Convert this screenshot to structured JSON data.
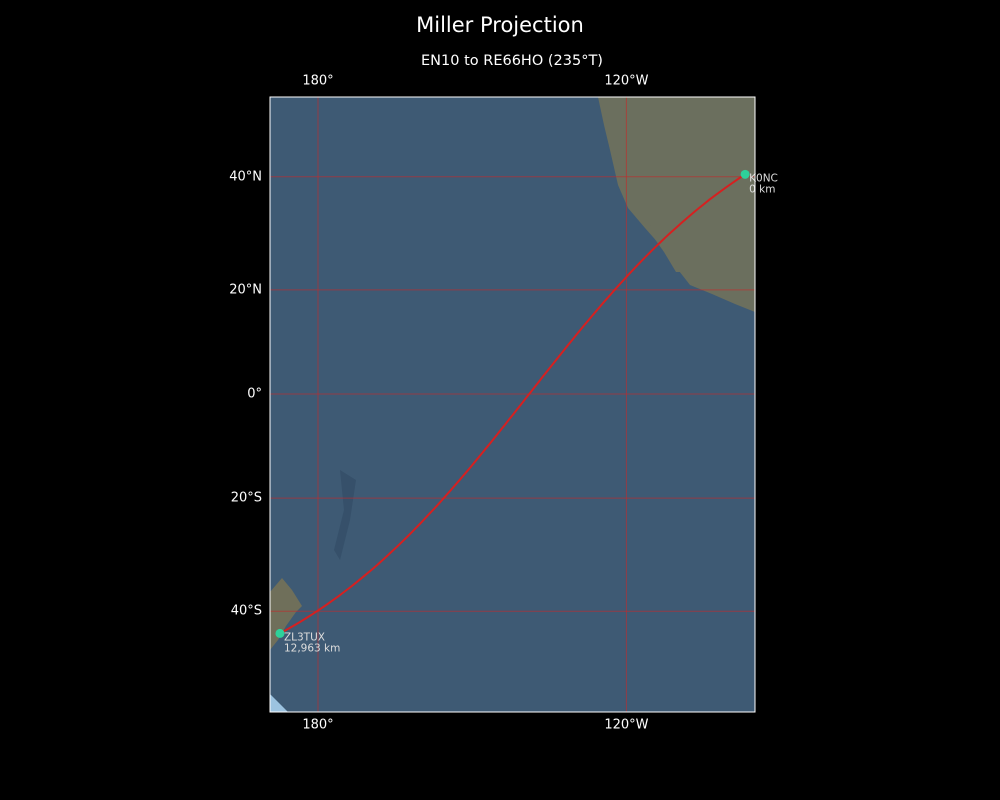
{
  "title": "Miller Projection",
  "subtitle": "EN10 to RE66HO (235°T)",
  "lon_ticks": [
    {
      "value": 180,
      "label": "180°"
    },
    {
      "value": -120,
      "label": "120°W"
    }
  ],
  "lat_ticks": [
    {
      "value": 40,
      "label": "40°N"
    },
    {
      "value": 20,
      "label": "20°N"
    },
    {
      "value": 0,
      "label": "0°"
    },
    {
      "value": -20,
      "label": "20°S"
    },
    {
      "value": -40,
      "label": "40°S"
    }
  ],
  "stations": [
    {
      "name": "K0NC",
      "distance": "0 km",
      "lat": 40.4,
      "lon": -96.9,
      "color": "#2ed19a"
    },
    {
      "name": "ZL3TUX",
      "distance": "12,963 km",
      "lat": -43.6,
      "lon": 172.6,
      "color": "#2ed19a"
    }
  ],
  "line_color": "#d62020"
}
